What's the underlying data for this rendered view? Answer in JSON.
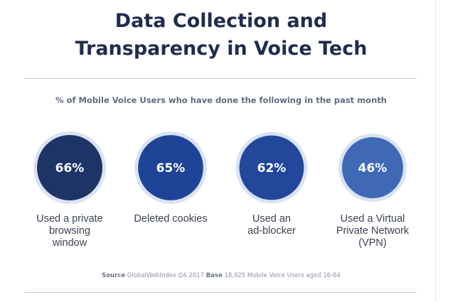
{
  "title_line1": "Data Collection and",
  "title_line2": "Transparency in Voice Tech",
  "subtitle": "% of Mobile Voice Users who have done the following in the past month",
  "source": {
    "source_label": "Source",
    "source_text": "GlobalWebIndex Q4 2017",
    "base_label": "Base",
    "base_text": "18,925 Mobile Voice Users aged 16-64"
  },
  "chart_data": {
    "type": "bubble",
    "unit": "%",
    "categories": [
      "Used a private\nbrowsing\nwindow",
      "Deleted cookies",
      "Used an\nad-blocker",
      "Used a Virtual\nPrivate Network\n(VPN)"
    ],
    "values": [
      66,
      65,
      62,
      46
    ],
    "value_labels": [
      "66%",
      "65%",
      "62%",
      "46%"
    ],
    "colors": [
      "#1f3466",
      "#1f4497",
      "#22479b",
      "#3f69b5"
    ],
    "halo_color": "#dae3f2"
  }
}
